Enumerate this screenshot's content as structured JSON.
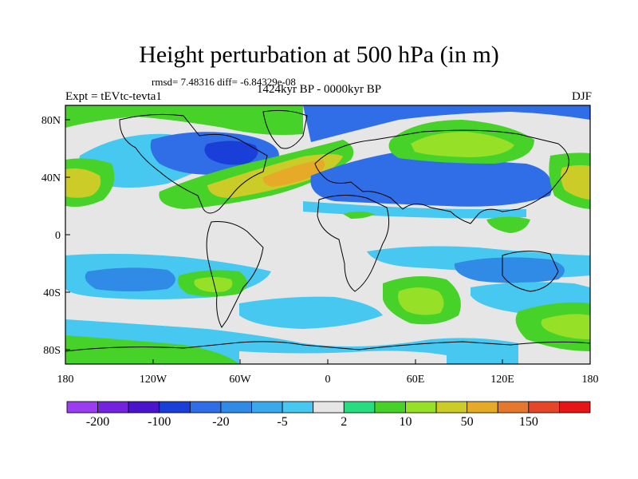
{
  "title": "Height perturbation at 500 hPa (in m)",
  "stats": "rmsd= 7.48316 diff= -6.84329e-08",
  "period": "1424kyr BP - 0000kyr BP",
  "experiment": "Expt = tEVtc-tevta1",
  "season": "DJF",
  "lat_labels": [
    "80N",
    "40N",
    "0",
    "40S",
    "80S"
  ],
  "lon_labels": [
    "180",
    "120W",
    "60W",
    "0",
    "60E",
    "120E",
    "180"
  ],
  "colorbar": {
    "colors": [
      "#9a3cf0",
      "#7322e0",
      "#4a14cc",
      "#1a3fd8",
      "#2f6ee6",
      "#2f8be6",
      "#3aa8ec",
      "#46c8f0",
      "#e6e6e6",
      "#28dc82",
      "#46d228",
      "#96e028",
      "#cccc28",
      "#e6aa28",
      "#e6782d",
      "#e64628",
      "#e61414"
    ],
    "labels": [
      "-200",
      "-100",
      "-20",
      "-5",
      "2",
      "10",
      "50",
      "150"
    ]
  },
  "map_colors": {
    "neutral": "#e6e6e6",
    "light_blue": "#46c8f0",
    "mid_blue": "#2f8be6",
    "blue": "#2f6ee6",
    "dark_blue": "#1a3fd8",
    "teal_green": "#28dc82",
    "green": "#46d228",
    "yellow_green": "#96e028",
    "olive": "#cccc28",
    "orange": "#e6aa28",
    "coastline": "#000000"
  }
}
